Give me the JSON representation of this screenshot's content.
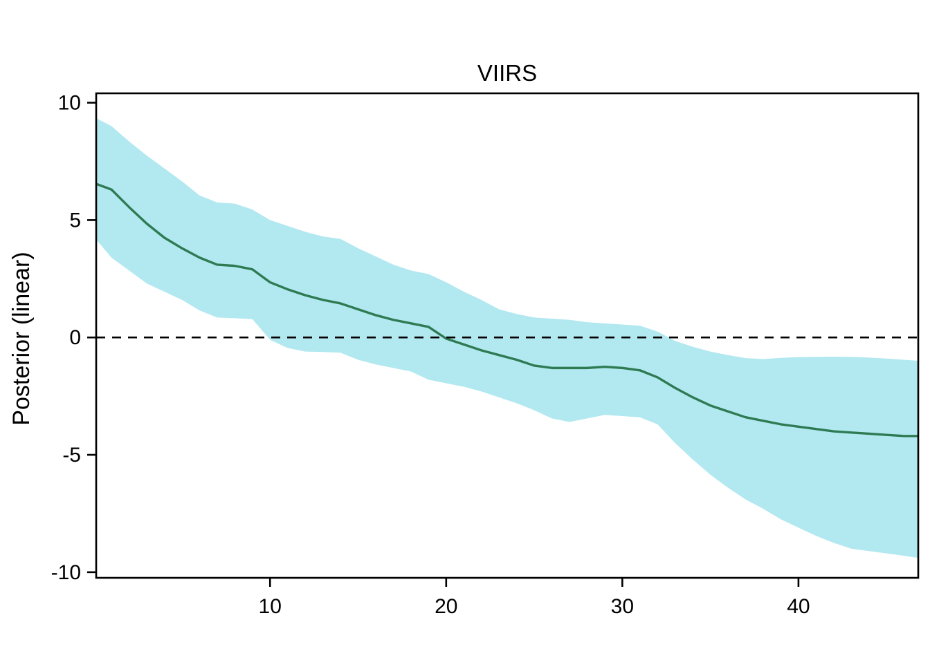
{
  "figure": {
    "background": "#ffffff"
  },
  "chart_data": {
    "type": "line",
    "title": "VIIRS",
    "xlabel": "",
    "ylabel": "Posterior (linear)",
    "xlim": [
      0.13,
      46.8
    ],
    "ylim": [
      -10.24,
      10.4
    ],
    "x_ticks": [
      10,
      20,
      30,
      40
    ],
    "y_ticks": [
      -10,
      -5,
      0,
      5,
      10
    ],
    "grid": false,
    "legend_position": "none",
    "reference_line": {
      "y": 0,
      "style": "dashed",
      "color": "#000000"
    },
    "colors": {
      "posterior_line": "#2e7b53",
      "credible_band": "#b2e8f0",
      "axis": "#000000",
      "background": "#ffffff"
    },
    "series": [
      {
        "name": "credible_band",
        "kind": "ribbon",
        "fill": "#b2e8f0",
        "x": [
          0.1,
          1,
          2,
          3,
          4,
          5,
          6,
          7,
          8,
          9,
          10,
          11,
          12,
          13,
          14,
          15,
          16,
          17,
          18,
          19,
          20,
          21,
          22,
          23,
          24,
          25,
          26,
          27,
          28,
          29,
          30,
          31,
          32,
          33,
          34,
          35,
          36,
          37,
          38,
          39,
          40,
          41,
          42,
          43,
          44,
          45,
          46,
          46.9
        ],
        "upper": [
          9.35,
          9.0,
          8.35,
          7.75,
          7.2,
          6.65,
          6.05,
          5.75,
          5.7,
          5.45,
          5.0,
          4.75,
          4.5,
          4.3,
          4.2,
          3.8,
          3.45,
          3.1,
          2.85,
          2.7,
          2.35,
          1.95,
          1.6,
          1.2,
          1.0,
          0.85,
          0.8,
          0.75,
          0.65,
          0.6,
          0.55,
          0.5,
          0.25,
          -0.15,
          -0.4,
          -0.6,
          -0.75,
          -0.88,
          -0.92,
          -0.87,
          -0.84,
          -0.83,
          -0.82,
          -0.83,
          -0.86,
          -0.9,
          -0.95,
          -1.0
        ],
        "lower": [
          4.2,
          3.4,
          2.85,
          2.3,
          1.95,
          1.6,
          1.15,
          0.85,
          0.82,
          0.78,
          -0.1,
          -0.45,
          -0.6,
          -0.62,
          -0.65,
          -0.95,
          -1.15,
          -1.3,
          -1.45,
          -1.8,
          -1.95,
          -2.1,
          -2.3,
          -2.55,
          -2.8,
          -3.1,
          -3.45,
          -3.6,
          -3.45,
          -3.3,
          -3.35,
          -3.4,
          -3.7,
          -4.5,
          -5.2,
          -5.85,
          -6.4,
          -6.9,
          -7.3,
          -7.75,
          -8.1,
          -8.45,
          -8.75,
          -9.0,
          -9.1,
          -9.2,
          -9.3,
          -9.4
        ]
      },
      {
        "name": "posterior_mean",
        "kind": "line",
        "color": "#2e7b53",
        "x": [
          0.1,
          1,
          2,
          3,
          4,
          5,
          6,
          7,
          8,
          9,
          10,
          11,
          12,
          13,
          14,
          15,
          16,
          17,
          18,
          19,
          20,
          21,
          22,
          23,
          24,
          25,
          26,
          27,
          28,
          29,
          30,
          31,
          32,
          33,
          34,
          35,
          36,
          37,
          38,
          39,
          40,
          41,
          42,
          43,
          44,
          45,
          46,
          46.9
        ],
        "y": [
          6.55,
          6.3,
          5.55,
          4.85,
          4.25,
          3.8,
          3.4,
          3.1,
          3.05,
          2.9,
          2.35,
          2.05,
          1.8,
          1.6,
          1.45,
          1.2,
          0.95,
          0.75,
          0.6,
          0.45,
          -0.05,
          -0.3,
          -0.55,
          -0.75,
          -0.95,
          -1.2,
          -1.3,
          -1.3,
          -1.3,
          -1.25,
          -1.3,
          -1.4,
          -1.7,
          -2.15,
          -2.55,
          -2.9,
          -3.15,
          -3.4,
          -3.55,
          -3.7,
          -3.8,
          -3.9,
          -4.0,
          -4.05,
          -4.1,
          -4.15,
          -4.2,
          -4.2
        ]
      }
    ]
  }
}
